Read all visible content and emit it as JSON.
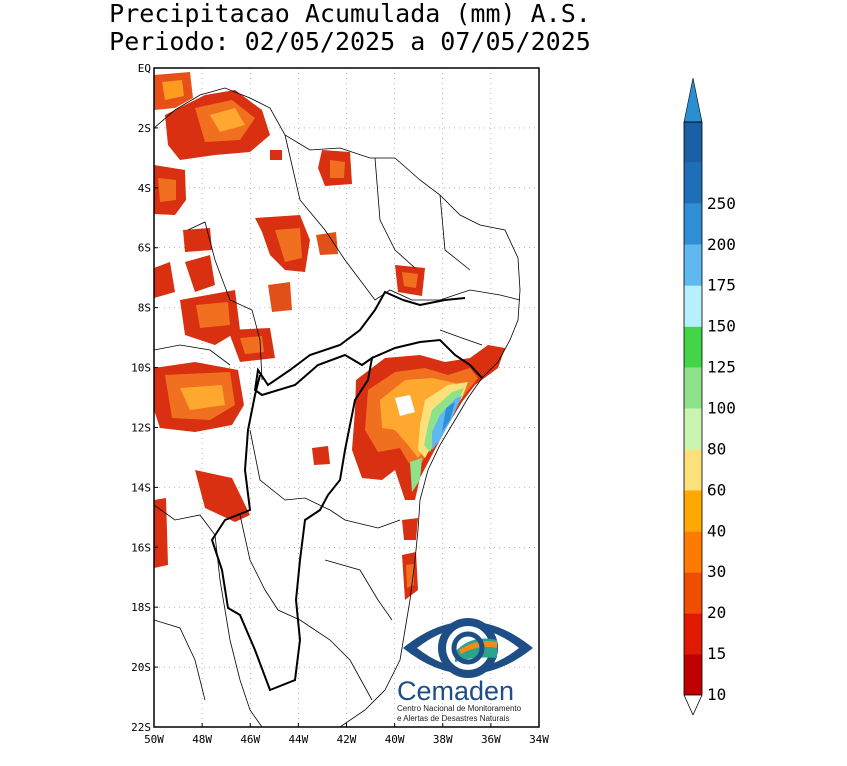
{
  "title": {
    "line1": "Precipitacao Acumulada (mm) A.S.",
    "line2": "Periodo: 02/05/2025 a 07/05/2025"
  },
  "map": {
    "lat_labels": [
      "EQ",
      "2S",
      "4S",
      "6S",
      "8S",
      "10S",
      "12S",
      "14S",
      "16S",
      "18S",
      "20S",
      "22S"
    ],
    "lon_labels": [
      "50W",
      "48W",
      "46W",
      "44W",
      "42W",
      "40W",
      "38W",
      "36W",
      "34W"
    ],
    "grid": true,
    "lat_range": [
      -22,
      0
    ],
    "lon_range": [
      -50,
      -34
    ]
  },
  "colorbar": {
    "labels": [
      "10",
      "15",
      "20",
      "30",
      "40",
      "60",
      "80",
      "100",
      "125",
      "150",
      "175",
      "200",
      "250"
    ],
    "colors": [
      "#c00000",
      "#e01a00",
      "#f04d00",
      "#ff7a00",
      "#ffa800",
      "#fde07a",
      "#c9f5b0",
      "#8ee38a",
      "#44d44a",
      "#b6f0ff",
      "#5fb8f0",
      "#2f8fd6",
      "#1f6fb8",
      "#1a5fa3"
    ],
    "top_color": "#2a8fd0"
  },
  "logo": {
    "name": "Cemaden",
    "subtitle_line1": "Centro Nacional de Monitoramento",
    "subtitle_line2": "e Alertas de Desastres Naturais",
    "colors": {
      "blue": "#1e4e86",
      "teal": "#2aa58c",
      "orange": "#f08a1a"
    }
  }
}
